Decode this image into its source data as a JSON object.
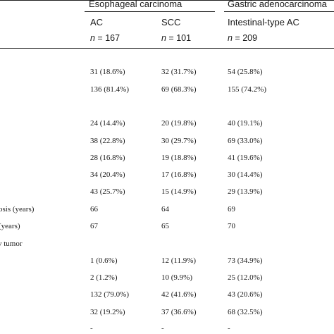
{
  "header": {
    "group_esophageal": "Esophageal carcinoma",
    "group_gastric": "Gastric adenocarcinoma",
    "col_ac": "AC",
    "col_scc": "SCC",
    "col_intestinal": "Intestinal-type AC",
    "n_symbol": "n",
    "n_ac": " = 167",
    "n_scc": " = 101",
    "n_intestinal": " = 209"
  },
  "row_labels": {
    "age_diagnosis": "osis (years)",
    "age_years": "(years)",
    "tumor": "v tumor"
  },
  "rows": [
    {
      "ac": "31 (18.6%)",
      "scc": "32 (31.7%)",
      "int": "54 (25.8%)"
    },
    {
      "ac": "136 (81.4%)",
      "scc": "69 (68.3%)",
      "int": "155 (74.2%)"
    },
    {
      "ac": "24 (14.4%)",
      "scc": "20 (19.8%)",
      "int": "40 (19.1%)"
    },
    {
      "ac": "38 (22.8%)",
      "scc": "30 (29.7%)",
      "int": "69 (33.0%)"
    },
    {
      "ac": "28 (16.8%)",
      "scc": "19 (18.8%)",
      "int": "41 (19.6%)"
    },
    {
      "ac": "34 (20.4%)",
      "scc": "17 (16.8%)",
      "int": "30 (14.4%)"
    },
    {
      "ac": "43 (25.7%)",
      "scc": "15 (14.9%)",
      "int": "29 (13.9%)"
    },
    {
      "ac": "66",
      "scc": "64",
      "int": "69"
    },
    {
      "ac": "67",
      "scc": "65",
      "int": "70"
    },
    {
      "ac": "1 (0.6%)",
      "scc": "12 (11.9%)",
      "int": "73 (34.9%)"
    },
    {
      "ac": "2 (1.2%)",
      "scc": "10 (9.9%)",
      "int": "25 (12.0%)"
    },
    {
      "ac": "132 (79.0%)",
      "scc": "42 (41.6%)",
      "int": "43 (20.6%)"
    },
    {
      "ac": "32 (19.2%)",
      "scc": "37 (36.6%)",
      "int": "68 (32.5%)"
    },
    {
      "ac": "-",
      "scc": "-",
      "int": "-"
    }
  ]
}
